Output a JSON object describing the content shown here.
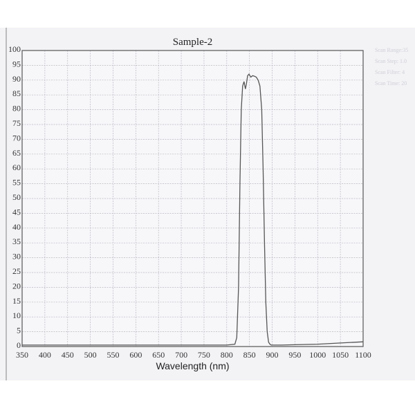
{
  "chart_data": {
    "type": "line",
    "title": "Sample-2",
    "xlabel": "Wavelength (nm)",
    "ylabel": "",
    "xlim": [
      350,
      1100
    ],
    "ylim": [
      0,
      100
    ],
    "xticks": [
      350,
      400,
      450,
      500,
      550,
      600,
      650,
      700,
      750,
      800,
      850,
      900,
      950,
      1000,
      1050,
      1100
    ],
    "yticks": [
      0,
      5,
      10,
      15,
      20,
      25,
      30,
      35,
      40,
      45,
      50,
      55,
      60,
      65,
      70,
      75,
      80,
      85,
      90,
      95,
      100
    ],
    "grid": true,
    "legend": "none",
    "line_color": "#555555",
    "series": [
      {
        "x": [
          350,
          400,
          500,
          600,
          700,
          800,
          818,
          822,
          826,
          829,
          832,
          835,
          838,
          841,
          843,
          846,
          849,
          853,
          857,
          861,
          865,
          869,
          873,
          877,
          880,
          883,
          886,
          889,
          892,
          895,
          898,
          902,
          920,
          950,
          1000,
          1050,
          1100
        ],
        "y": [
          0.5,
          0.5,
          0.5,
          0.5,
          0.5,
          0.5,
          0.8,
          3,
          20,
          55,
          80,
          88,
          89.5,
          87,
          88.5,
          91.5,
          92,
          91,
          91.5,
          91.3,
          91,
          90,
          88,
          80,
          60,
          35,
          15,
          5,
          1.5,
          0.8,
          0.5,
          0.5,
          0.5,
          0.6,
          0.8,
          1.2,
          1.6
        ]
      }
    ]
  },
  "side_info": [
    "Scan Range:35",
    "Scan Step:  1.0",
    "Scan Filter: 4",
    "Scan Time:  20"
  ]
}
